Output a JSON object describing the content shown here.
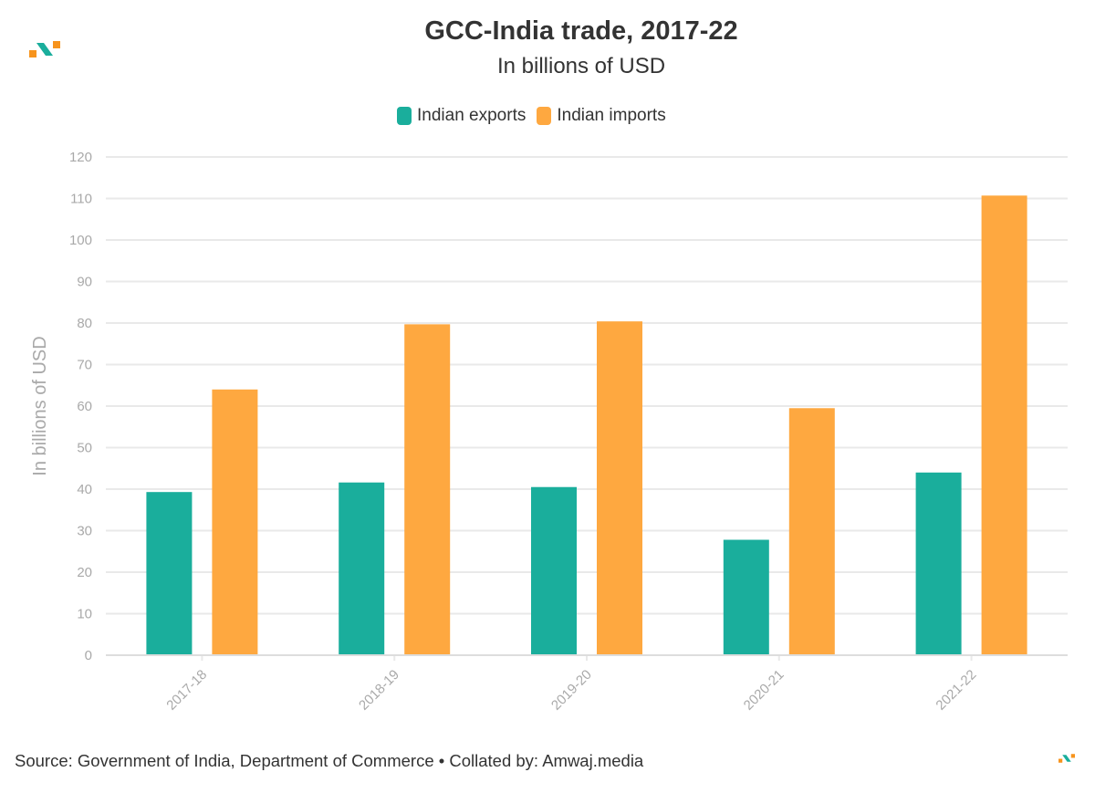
{
  "colors": {
    "exports": "#1aae9c",
    "imports": "#fea840",
    "grid": "#e9e9e9",
    "axis_text": "#a9a9a9",
    "logo_teal": "#1aae9c",
    "logo_orange": "#f7941d"
  },
  "header": {
    "title": "GCC-India trade, 2017-22",
    "subtitle": "In billions of USD"
  },
  "footer": {
    "source": "Source: Government of India, Department of Commerce • Collated by: Amwaj.media"
  },
  "chart_data": {
    "type": "bar",
    "title": "GCC-India trade, 2017-22",
    "subtitle": "In billions of USD",
    "xlabel": "",
    "ylabel": "In billions of USD",
    "categories": [
      "2017-18",
      "2018-19",
      "2019-20",
      "2020-21",
      "2021-22"
    ],
    "series": [
      {
        "name": "Indian exports",
        "values": [
          39.3,
          41.6,
          40.5,
          27.8,
          44.0
        ]
      },
      {
        "name": "Indian imports",
        "values": [
          64.0,
          79.7,
          80.4,
          59.5,
          110.7
        ]
      }
    ],
    "ylim": [
      0,
      120
    ],
    "yticks": [
      0,
      10,
      20,
      30,
      40,
      50,
      60,
      70,
      80,
      90,
      100,
      110,
      120
    ],
    "grid": true,
    "legend": "top-center"
  }
}
